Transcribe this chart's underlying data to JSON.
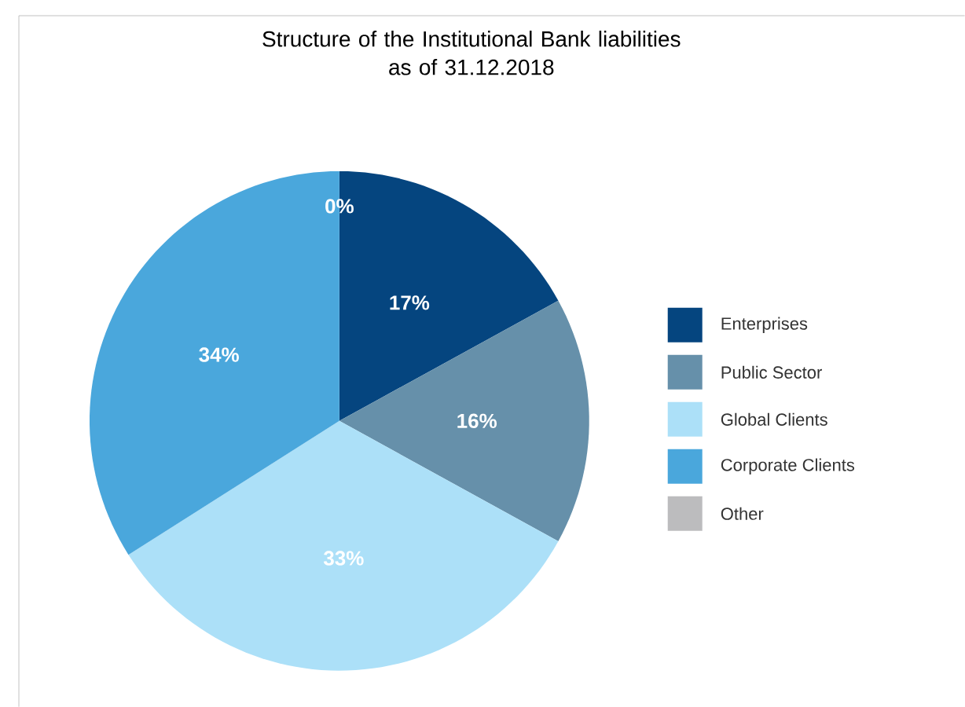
{
  "chart_data": {
    "type": "pie",
    "title": "Structure of the Institutional Bank liabilities\nas of 31.12.2018",
    "categories": [
      "Enterprises",
      "Public Sector",
      "Global Clients",
      "Corporate Clients",
      "Other"
    ],
    "values": [
      17,
      16,
      33,
      34,
      0
    ],
    "colors": [
      "#05457f",
      "#6690aa",
      "#ace0f8",
      "#4aa7dc",
      "#bcbcbe"
    ],
    "value_labels": [
      "17%",
      "16%",
      "33%",
      "34%",
      "0%"
    ],
    "legend": "right"
  }
}
